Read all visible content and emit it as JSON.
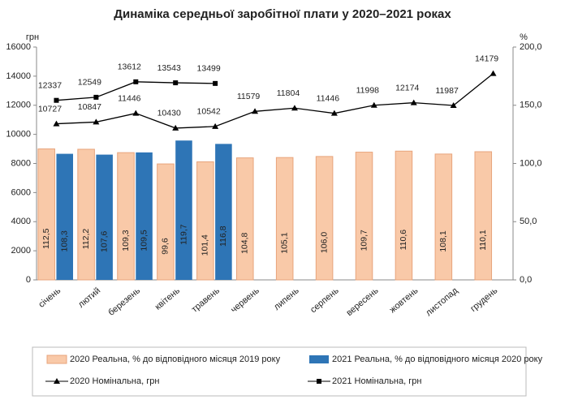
{
  "chart_data": {
    "type": "combo",
    "title": "Динаміка середньої заробітної плати у 2020–2021 роках",
    "y_label": "грн",
    "y2_label": "%",
    "categories": [
      "січень",
      "лютий",
      "березень",
      "квітень",
      "травень",
      "червень",
      "липень",
      "серпень",
      "вересень",
      "жовтень",
      "листопад",
      "грудень"
    ],
    "ylim": [
      0,
      16000
    ],
    "yticks": [
      0,
      2000,
      4000,
      6000,
      8000,
      10000,
      12000,
      14000,
      16000
    ],
    "y2lim": [
      0,
      200
    ],
    "y2ticks": [
      {
        "value": 0,
        "label": "0,0"
      },
      {
        "value": 50,
        "label": "50,0"
      },
      {
        "value": 100,
        "label": "100,0"
      },
      {
        "value": 150,
        "label": "150,0"
      },
      {
        "value": 200,
        "label": "200,0"
      }
    ],
    "series": [
      {
        "name": "2020 Реальна, % до відповідного місяця 2019 року",
        "type": "bar",
        "axis": "y2",
        "color": "#f9c9a8",
        "values": [
          112.5,
          112.2,
          109.3,
          99.6,
          101.4,
          104.8,
          105.1,
          106.0,
          109.7,
          110.6,
          108.1,
          110.1
        ],
        "value_labels": [
          "112,5",
          "112,2",
          "109,3",
          "99,6",
          "101,4",
          "104,8",
          "105,1",
          "106,0",
          "109,7",
          "110,6",
          "108,1",
          "110,1"
        ]
      },
      {
        "name": "2021 Реальна, % до відповідного місяця 2020 року",
        "type": "bar",
        "axis": "y2",
        "color": "#2e75b6",
        "values": [
          108.3,
          107.6,
          109.5,
          119.7,
          116.8,
          null,
          null,
          null,
          null,
          null,
          null,
          null
        ],
        "value_labels": [
          "108,3",
          "107,6",
          "109,5",
          "119,7",
          "116,8",
          null,
          null,
          null,
          null,
          null,
          null,
          null
        ]
      },
      {
        "name": "2020 Номінальна, грн",
        "type": "line",
        "marker": "triangle",
        "color": "#000000",
        "values": [
          10727,
          10847,
          11446,
          10430,
          10542,
          11579,
          11804,
          11446,
          11998,
          12174,
          11987,
          14179
        ]
      },
      {
        "name": "2021 Номінальна, грн",
        "type": "line",
        "marker": "square",
        "color": "#000000",
        "values": [
          12337,
          12549,
          13612,
          13543,
          13499,
          null,
          null,
          null,
          null,
          null,
          null,
          null
        ]
      }
    ]
  }
}
